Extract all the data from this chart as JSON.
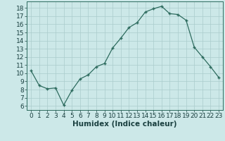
{
  "x": [
    0,
    1,
    2,
    3,
    4,
    5,
    6,
    7,
    8,
    9,
    10,
    11,
    12,
    13,
    14,
    15,
    16,
    17,
    18,
    19,
    20,
    21,
    22,
    23
  ],
  "y": [
    10.3,
    8.5,
    8.1,
    8.2,
    6.1,
    7.9,
    9.3,
    9.8,
    10.8,
    11.2,
    13.1,
    14.3,
    15.6,
    16.2,
    17.5,
    17.9,
    18.2,
    17.3,
    17.2,
    16.5,
    13.2,
    12.0,
    10.8,
    9.5
  ],
  "xlabel": "Humidex (Indice chaleur)",
  "xlim": [
    -0.5,
    23.5
  ],
  "ylim": [
    5.5,
    18.8
  ],
  "yticks": [
    6,
    7,
    8,
    9,
    10,
    11,
    12,
    13,
    14,
    15,
    16,
    17,
    18
  ],
  "xticks": [
    0,
    1,
    2,
    3,
    4,
    5,
    6,
    7,
    8,
    9,
    10,
    11,
    12,
    13,
    14,
    15,
    16,
    17,
    18,
    19,
    20,
    21,
    22,
    23
  ],
  "line_color": "#2d6b5e",
  "marker": "+",
  "bg_color": "#cce8e8",
  "grid_color": "#aacccc",
  "font_color": "#1a4040",
  "xlabel_fontsize": 7.5,
  "tick_fontsize": 6.5
}
